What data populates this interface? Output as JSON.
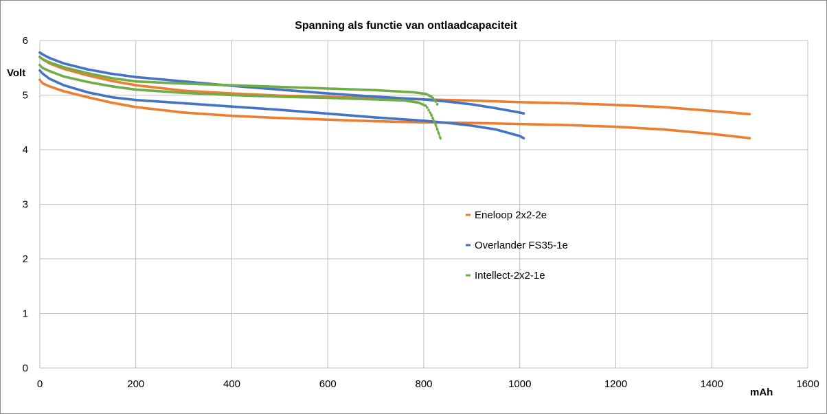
{
  "chart_data": {
    "type": "scatter",
    "title": "Spanning  als  functie  van  ontlaadcapaciteit",
    "xlabel": "mAh",
    "ylabel": "Volt",
    "xlim": [
      0,
      1600
    ],
    "ylim": [
      0,
      6
    ],
    "xticks": [
      "0",
      "200",
      "400",
      "600",
      "800",
      "1000",
      "1200",
      "1400",
      "1600"
    ],
    "yticks": [
      "0",
      "1",
      "2",
      "3",
      "4",
      "5",
      "6"
    ],
    "grid": true,
    "legend_position": "center-right",
    "series": [
      {
        "name": "Eneloop 2x2-2e",
        "color": "#ed7d31",
        "curves": [
          [
            [
              0,
              5.7
            ],
            [
              5,
              5.66
            ],
            [
              20,
              5.58
            ],
            [
              50,
              5.48
            ],
            [
              100,
              5.36
            ],
            [
              150,
              5.26
            ],
            [
              200,
              5.18
            ],
            [
              300,
              5.08
            ],
            [
              400,
              5.03
            ],
            [
              500,
              4.99
            ],
            [
              600,
              4.97
            ],
            [
              700,
              4.94
            ],
            [
              800,
              4.92
            ],
            [
              900,
              4.9
            ],
            [
              1000,
              4.87
            ],
            [
              1100,
              4.85
            ],
            [
              1200,
              4.82
            ],
            [
              1300,
              4.78
            ],
            [
              1400,
              4.71
            ],
            [
              1480,
              4.65
            ]
          ],
          [
            [
              0,
              5.28
            ],
            [
              5,
              5.22
            ],
            [
              20,
              5.16
            ],
            [
              50,
              5.07
            ],
            [
              100,
              4.96
            ],
            [
              150,
              4.86
            ],
            [
              200,
              4.78
            ],
            [
              300,
              4.68
            ],
            [
              400,
              4.62
            ],
            [
              500,
              4.58
            ],
            [
              600,
              4.55
            ],
            [
              700,
              4.52
            ],
            [
              800,
              4.5
            ],
            [
              900,
              4.49
            ],
            [
              1000,
              4.47
            ],
            [
              1100,
              4.45
            ],
            [
              1200,
              4.42
            ],
            [
              1300,
              4.37
            ],
            [
              1400,
              4.29
            ],
            [
              1480,
              4.21
            ]
          ]
        ]
      },
      {
        "name": "Overlander FS35-1e",
        "color": "#4472c4",
        "curves": [
          [
            [
              0,
              5.78
            ],
            [
              5,
              5.75
            ],
            [
              20,
              5.68
            ],
            [
              50,
              5.58
            ],
            [
              100,
              5.47
            ],
            [
              150,
              5.39
            ],
            [
              200,
              5.33
            ],
            [
              300,
              5.25
            ],
            [
              400,
              5.17
            ],
            [
              500,
              5.1
            ],
            [
              600,
              5.03
            ],
            [
              700,
              4.97
            ],
            [
              800,
              4.92
            ],
            [
              850,
              4.88
            ],
            [
              900,
              4.83
            ],
            [
              950,
              4.76
            ],
            [
              1000,
              4.68
            ],
            [
              1010,
              4.66
            ]
          ],
          [
            [
              0,
              5.45
            ],
            [
              5,
              5.4
            ],
            [
              20,
              5.3
            ],
            [
              50,
              5.18
            ],
            [
              100,
              5.05
            ],
            [
              150,
              4.96
            ],
            [
              200,
              4.91
            ],
            [
              300,
              4.85
            ],
            [
              400,
              4.79
            ],
            [
              500,
              4.73
            ],
            [
              600,
              4.66
            ],
            [
              700,
              4.59
            ],
            [
              800,
              4.53
            ],
            [
              850,
              4.49
            ],
            [
              900,
              4.44
            ],
            [
              950,
              4.37
            ],
            [
              1000,
              4.25
            ],
            [
              1010,
              4.2
            ]
          ]
        ]
      },
      {
        "name": "Intellect-2x2-1e",
        "color": "#70ad47",
        "curves": [
          [
            [
              0,
              5.7
            ],
            [
              5,
              5.66
            ],
            [
              20,
              5.6
            ],
            [
              50,
              5.51
            ],
            [
              100,
              5.4
            ],
            [
              150,
              5.31
            ],
            [
              200,
              5.25
            ],
            [
              300,
              5.21
            ],
            [
              400,
              5.18
            ],
            [
              500,
              5.15
            ],
            [
              600,
              5.12
            ],
            [
              700,
              5.09
            ],
            [
              780,
              5.05
            ],
            [
              805,
              5.02
            ],
            [
              818,
              4.96
            ],
            [
              825,
              4.88
            ],
            [
              830,
              4.8
            ]
          ],
          [
            [
              0,
              5.55
            ],
            [
              5,
              5.5
            ],
            [
              20,
              5.44
            ],
            [
              50,
              5.34
            ],
            [
              100,
              5.24
            ],
            [
              150,
              5.16
            ],
            [
              200,
              5.1
            ],
            [
              300,
              5.04
            ],
            [
              400,
              5.0
            ],
            [
              500,
              4.97
            ],
            [
              600,
              4.95
            ],
            [
              700,
              4.92
            ],
            [
              760,
              4.9
            ],
            [
              790,
              4.86
            ],
            [
              805,
              4.8
            ],
            [
              815,
              4.65
            ],
            [
              825,
              4.45
            ],
            [
              835,
              4.2
            ]
          ]
        ]
      }
    ]
  }
}
